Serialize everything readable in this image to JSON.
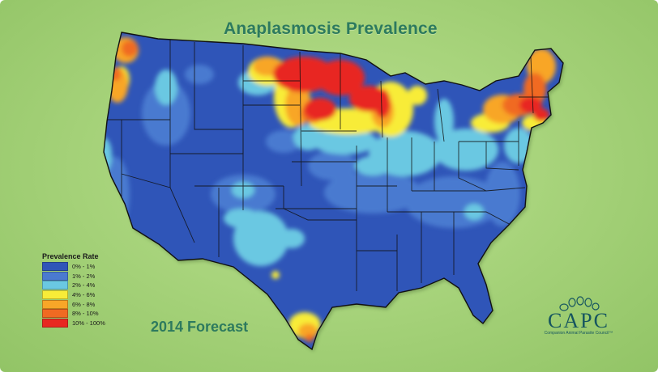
{
  "title": "Anaplasmosis Prevalence",
  "subtitle": "2014 Forecast",
  "legend": {
    "title": "Prevalence Rate",
    "items": [
      {
        "label": "0% - 1%",
        "color": "#2f55b8"
      },
      {
        "label": "1% - 2%",
        "color": "#4a7ad0"
      },
      {
        "label": "2% - 4%",
        "color": "#6ac8e2"
      },
      {
        "label": "4% - 6%",
        "color": "#f8ec38"
      },
      {
        "label": "6% - 8%",
        "color": "#f8a628"
      },
      {
        "label": "8% - 10%",
        "color": "#f06a22"
      },
      {
        "label": "10% - 100%",
        "color": "#e82820"
      }
    ]
  },
  "logo": {
    "name": "CAPC",
    "tagline": "Companion Animal Parasite Council™",
    "color": "#16555f"
  },
  "colors": {
    "background": "#a8d47c",
    "title_text": "#2d7a5e",
    "state_borders": "#111111",
    "base_fill": "#2f55b8"
  },
  "regions": [
    {
      "name": "Pacific Northwest (WA/OR)",
      "prevalence_class": "6% - 10%"
    },
    {
      "name": "Northern Minnesota & Wisconsin",
      "prevalence_class": "10% - 100%"
    },
    {
      "name": "Northeast (New England / New York)",
      "prevalence_class": "8% - 100%"
    },
    {
      "name": "Upper Midwest fringe",
      "prevalence_class": "4% - 6%"
    },
    {
      "name": "Ohio Valley / Mid-Atlantic",
      "prevalence_class": "2% - 4%"
    },
    {
      "name": "Southern Texas",
      "prevalence_class": "4% - 8%"
    },
    {
      "name": "Southern states",
      "prevalence_class": "0% - 1%"
    }
  ]
}
